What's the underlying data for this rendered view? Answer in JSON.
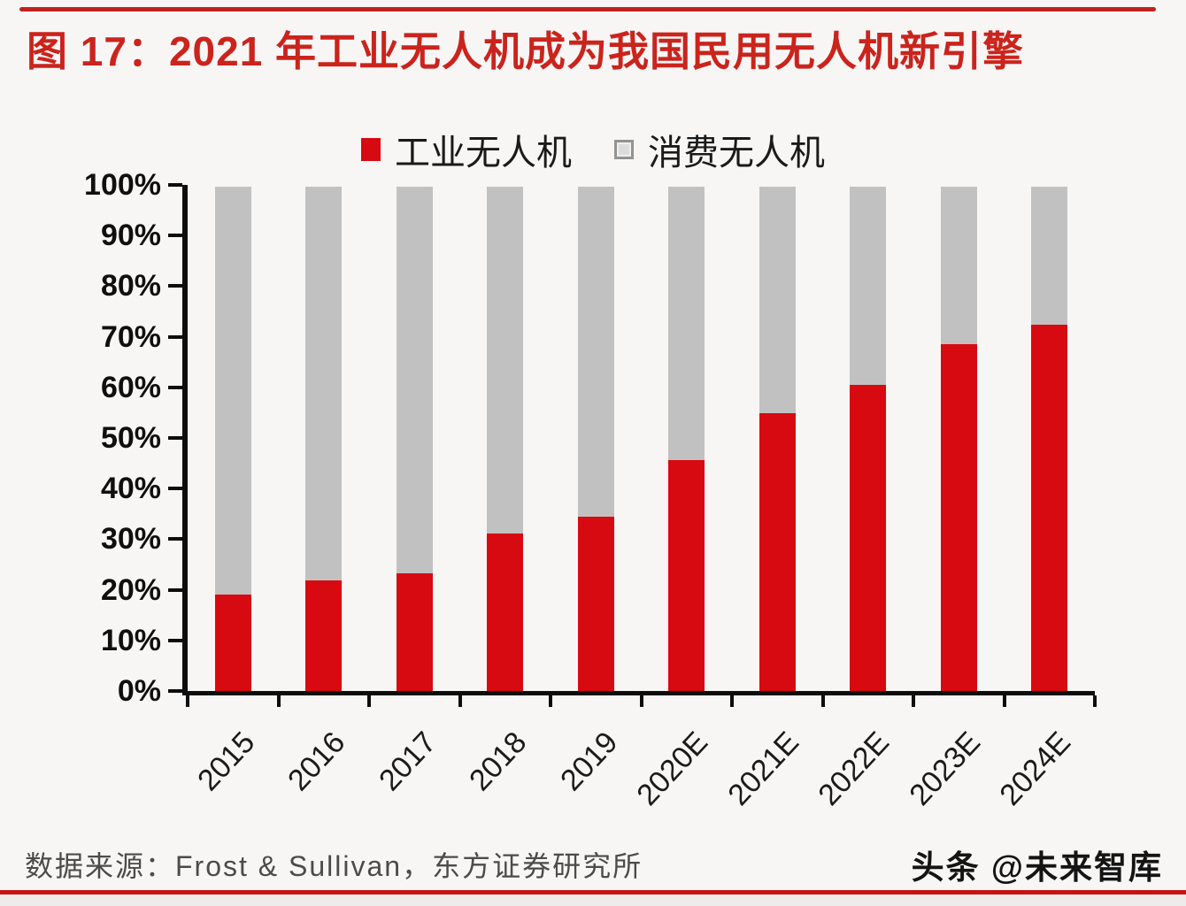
{
  "figure": {
    "title": "图 17：2021 年工业无人机成为我国民用无人机新引擎",
    "source": "数据来源：Frost & Sullivan，东方证券研究所",
    "watermark": "头条 @未来智库"
  },
  "legend": {
    "industrial_label": "工业无人机",
    "consumer_label": "消费无人机"
  },
  "colors": {
    "accent_red": "#c32120",
    "title_red": "#ca241d",
    "bar_red": "#d60a10",
    "bar_gray": "#c2c1c1",
    "bottom_line_red": "#c41414"
  },
  "chart_data": {
    "type": "bar",
    "stacked": true,
    "title": "2021 年工业无人机成为我国民用无人机新引擎",
    "categories": [
      "2015",
      "2016",
      "2017",
      "2018",
      "2019",
      "2020E",
      "2021E",
      "2022E",
      "2023E",
      "2024E"
    ],
    "series": [
      {
        "name": "工业无人机",
        "color": "#d60a10",
        "values": [
          19.0,
          21.8,
          23.3,
          31.2,
          34.5,
          45.7,
          54.9,
          60.5,
          68.6,
          72.4
        ]
      },
      {
        "name": "消费无人机",
        "color": "#c2c1c1",
        "values": [
          81.0,
          78.2,
          76.7,
          68.8,
          65.5,
          54.3,
          45.1,
          39.5,
          31.4,
          27.6
        ]
      }
    ],
    "y_ticks": [
      "0%",
      "10%",
      "20%",
      "30%",
      "40%",
      "50%",
      "60%",
      "70%",
      "80%",
      "90%",
      "100%"
    ],
    "ylim": [
      0,
      100
    ],
    "xlabel": "",
    "ylabel": "",
    "grid": false,
    "legend_position": "top",
    "x_tick_rotation": -47
  }
}
